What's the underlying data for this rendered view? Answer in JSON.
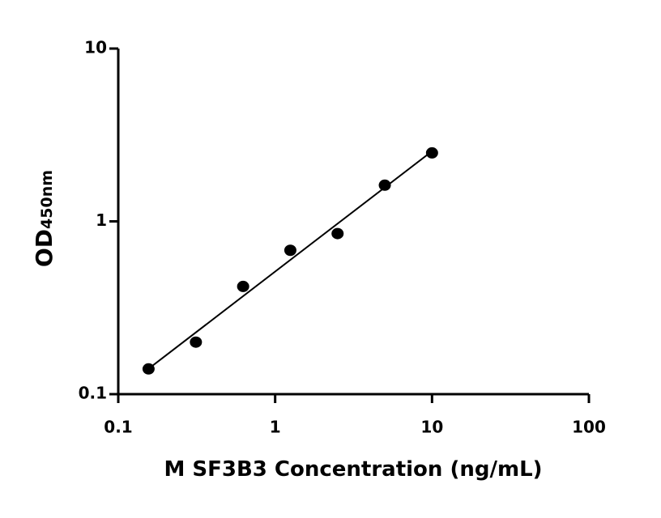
{
  "chart_data": {
    "type": "scatter",
    "x_label": "M SF3B3 Concentration (ng/mL)",
    "y_label": "OD",
    "y_label_subscript": "450nm",
    "x": [
      0.156,
      0.3125,
      0.625,
      1.25,
      2.5,
      5,
      10
    ],
    "values": [
      0.14,
      0.2,
      0.42,
      0.68,
      0.85,
      1.62,
      2.49
    ],
    "color": "#000000",
    "xlim": [
      0.1,
      100
    ],
    "xticks": [
      0.1,
      1,
      10,
      100
    ],
    "ylim": [
      0.1,
      10
    ],
    "yticks": [
      0.1,
      1,
      10
    ],
    "x_log": true,
    "y_log": true,
    "fit_line": true
  }
}
